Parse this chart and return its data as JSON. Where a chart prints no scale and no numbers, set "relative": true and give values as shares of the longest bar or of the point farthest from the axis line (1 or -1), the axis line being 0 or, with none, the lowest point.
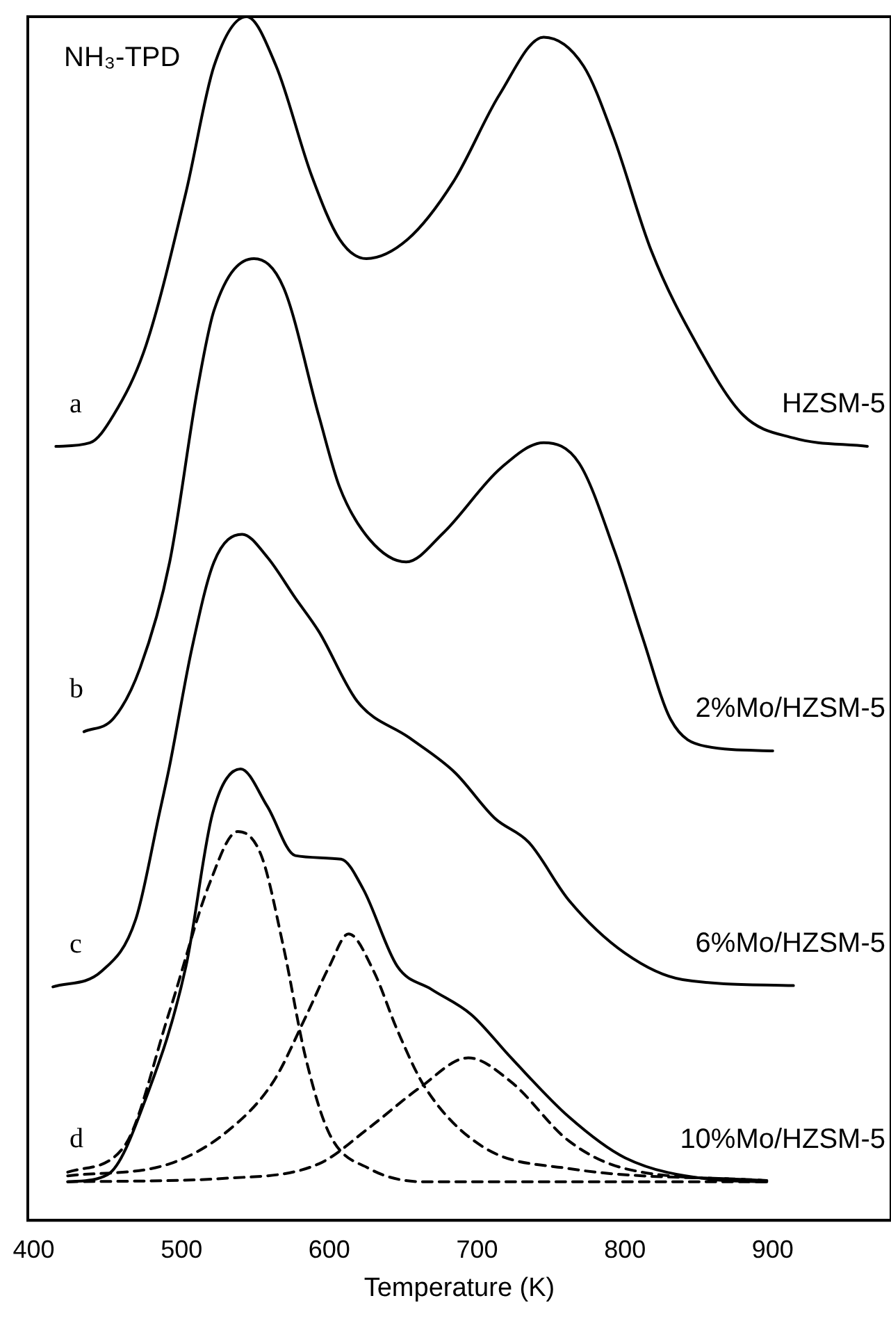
{
  "chart_data": {
    "type": "line",
    "xlabel": "Temperature (K)",
    "relative": true,
    "xlim": [
      396,
      980
    ],
    "xticks": [
      400,
      500,
      600,
      700,
      800,
      900
    ],
    "marker": "none",
    "legend": false,
    "grid": false,
    "annotations": [
      "NH₃-TPD",
      "a",
      "b",
      "c",
      "d"
    ],
    "series": [
      {
        "name": "HZSM-5",
        "color": "#000000",
        "line_style": "solid",
        "x": [
          415,
          438,
          454,
          476,
          503,
          522,
          544,
          564,
          588,
          607,
          625,
          653,
          684,
          715,
          745,
          772,
          792,
          818,
          849,
          880,
          914,
          964
        ],
        "values": [
          0.643,
          0.646,
          0.669,
          0.727,
          0.854,
          0.959,
          1.0,
          0.959,
          0.868,
          0.815,
          0.799,
          0.815,
          0.863,
          0.935,
          0.983,
          0.959,
          0.901,
          0.805,
          0.727,
          0.669,
          0.65,
          0.643
        ]
      },
      {
        "name": "2%Mo/HZSM-5",
        "color": "#000000",
        "line_style": "solid",
        "x": [
          434,
          454,
          472,
          492,
          511,
          522,
          549,
          569,
          593,
          607,
          627,
          652,
          677,
          716,
          745,
          769,
          793,
          812,
          831,
          854,
          900
        ],
        "values": [
          0.406,
          0.417,
          0.459,
          0.547,
          0.692,
          0.756,
          0.799,
          0.775,
          0.668,
          0.609,
          0.566,
          0.547,
          0.571,
          0.625,
          0.646,
          0.629,
          0.556,
          0.484,
          0.416,
          0.394,
          0.39
        ]
      },
      {
        "name": "6%Mo/HZSM-5",
        "color": "#000000",
        "line_style": "solid",
        "x": [
          413,
          446,
          469,
          485,
          492,
          507,
          522,
          541,
          558,
          577,
          593,
          619,
          654,
          685,
          712,
          735,
          762,
          800,
          839,
          914
        ],
        "values": [
          0.194,
          0.207,
          0.25,
          0.338,
          0.378,
          0.475,
          0.547,
          0.57,
          0.551,
          0.517,
          0.489,
          0.431,
          0.401,
          0.372,
          0.334,
          0.314,
          0.266,
          0.222,
          0.2,
          0.195
        ]
      },
      {
        "name": "10%Mo/HZSM-5",
        "color": "#000000",
        "line_style": "solid",
        "x": [
          423,
          450,
          477,
          503,
          521,
          540,
          558,
          577,
          608,
          623,
          646,
          669,
          696,
          723,
          762,
          800,
          858,
          896
        ],
        "values": [
          0.032,
          0.038,
          0.105,
          0.211,
          0.338,
          0.375,
          0.344,
          0.303,
          0.3,
          0.275,
          0.211,
          0.192,
          0.171,
          0.135,
          0.086,
          0.052,
          0.034,
          0.032
        ]
      },
      {
        "color": "#000000",
        "line_style": "dashed",
        "x": [
          423,
          461,
          492,
          519,
          538,
          554,
          569,
          584,
          600,
          627,
          665,
          896
        ],
        "values": [
          0.04,
          0.061,
          0.174,
          0.28,
          0.323,
          0.303,
          0.227,
          0.135,
          0.072,
          0.043,
          0.032,
          0.032
        ]
      },
      {
        "color": "#000000",
        "line_style": "dashed",
        "x": [
          423,
          492,
          531,
          562,
          584,
          600,
          613,
          630,
          646,
          665,
          704,
          762,
          896
        ],
        "values": [
          0.037,
          0.047,
          0.074,
          0.115,
          0.169,
          0.211,
          0.238,
          0.207,
          0.158,
          0.11,
          0.061,
          0.043,
          0.033
        ]
      },
      {
        "color": "#000000",
        "line_style": "dashed",
        "x": [
          423,
          531,
          593,
          627,
          661,
          694,
          723,
          762,
          800,
          896
        ],
        "values": [
          0.032,
          0.035,
          0.047,
          0.077,
          0.11,
          0.135,
          0.115,
          0.066,
          0.043,
          0.033
        ]
      }
    ]
  }
}
